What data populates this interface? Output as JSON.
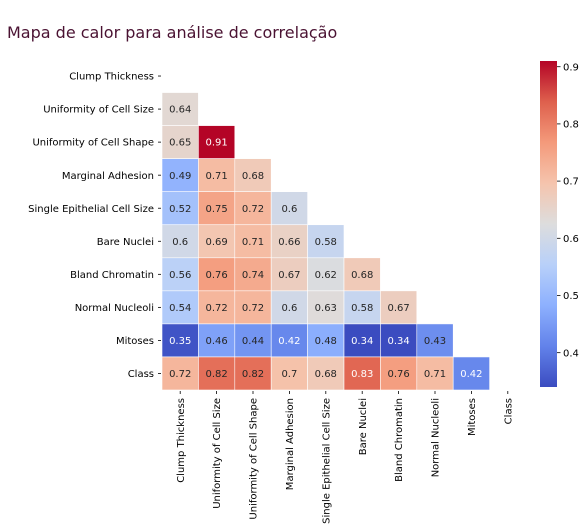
{
  "chart_data": {
    "type": "heatmap",
    "title": "Mapa de calor para análise de correlação",
    "labels": [
      "Clump Thickness",
      "Uniformity of Cell Size",
      "Uniformity of Cell Shape",
      "Marginal Adhesion",
      "Single Epithelial Cell Size",
      "Bare Nuclei",
      "Bland Chromatin",
      "Normal Nucleoli",
      "Mitoses",
      "Class"
    ],
    "mask": "upper-triangle-including-diagonal",
    "values": [
      [],
      [
        0.64
      ],
      [
        0.65,
        0.91
      ],
      [
        0.49,
        0.71,
        0.68
      ],
      [
        0.52,
        0.75,
        0.72,
        0.6
      ],
      [
        0.6,
        0.69,
        0.71,
        0.66,
        0.58
      ],
      [
        0.56,
        0.76,
        0.74,
        0.67,
        0.62,
        0.68
      ],
      [
        0.54,
        0.72,
        0.72,
        0.6,
        0.63,
        0.58,
        0.67
      ],
      [
        0.35,
        0.46,
        0.44,
        0.42,
        0.48,
        0.34,
        0.34,
        0.43
      ],
      [
        0.72,
        0.82,
        0.82,
        0.7,
        0.68,
        0.83,
        0.76,
        0.71,
        0.42
      ]
    ],
    "colormap": "coolwarm",
    "vmin": 0.34,
    "vmax": 0.91,
    "colorbar_ticks": [
      0.4,
      0.5,
      0.6,
      0.7,
      0.8,
      0.9
    ],
    "cell_border_color": "#ffffff"
  }
}
